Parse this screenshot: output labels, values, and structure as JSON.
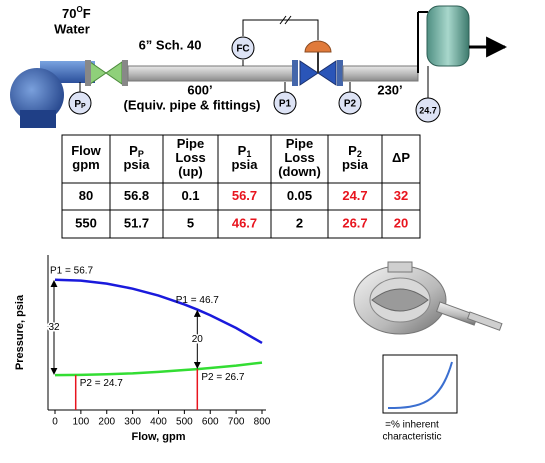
{
  "diagram": {
    "temperature": {
      "value": "70",
      "sup": "O",
      "unit": "F"
    },
    "fluid": "Water",
    "pipe_spec": "6” Sch. 40",
    "controller": "FC",
    "upstream_length": "600’",
    "upstream_note": "(Equiv. pipe & fittings)",
    "gauge_pump": {
      "text": "P",
      "sub": "P"
    },
    "gauge_p1": "P1",
    "gauge_p2": "P2",
    "downstream_length": "230’",
    "gauge_tank": "24.7"
  },
  "table": {
    "header": [
      [
        {
          "text": "Flow"
        },
        {
          "text": "gpm"
        }
      ],
      [
        {
          "text": "P",
          "sub": "P"
        },
        {
          "text": "psia"
        }
      ],
      [
        {
          "text": "Pipe"
        },
        {
          "text": "Loss"
        },
        {
          "text": "(up)"
        }
      ],
      [
        {
          "text": "P",
          "sub": "1"
        },
        {
          "text": "psia"
        }
      ],
      [
        {
          "text": "Pipe"
        },
        {
          "text": "Loss"
        },
        {
          "text": "(down)"
        }
      ],
      [
        {
          "text": "P",
          "sub": "2"
        },
        {
          "text": "psia"
        }
      ],
      [
        {
          "text": "ΔP"
        }
      ]
    ],
    "highlight_columns": [
      3,
      5,
      6
    ],
    "highlight_color": "#e8141e",
    "rows": [
      [
        80,
        56.8,
        0.1,
        56.7,
        0.05,
        24.7,
        32
      ],
      [
        550,
        51.7,
        5,
        46.7,
        2,
        26.7,
        20
      ]
    ]
  },
  "chart_data": {
    "type": "line",
    "x_label": "Flow, gpm",
    "y_label": "Pressure, psia",
    "x": [
      0,
      100,
      200,
      300,
      400,
      500,
      550,
      600,
      700,
      800
    ],
    "series": [
      {
        "name": "P1",
        "color": "#1a1adc",
        "values": [
          56.7,
          56.4,
          55.4,
          53.7,
          51.4,
          48.4,
          46.7,
          44.8,
          40.5,
          35.5
        ]
      },
      {
        "name": "P2",
        "color": "#33dd33",
        "values": [
          24.7,
          24.8,
          25.0,
          25.3,
          25.8,
          26.4,
          26.7,
          27.1,
          27.9,
          28.9
        ]
      }
    ],
    "xlim": [
      0,
      800
    ],
    "xticks": [
      0,
      100,
      200,
      300,
      400,
      500,
      600,
      700,
      800
    ],
    "ylim": [
      13,
      65
    ],
    "markers": [
      {
        "x": 80,
        "p1": 56.7,
        "p2": 24.7,
        "p1_label": "P1 = 56.7",
        "p2_label": "P2 = 24.7",
        "diff_label": "32"
      },
      {
        "x": 550,
        "p1": 46.7,
        "p2": 26.7,
        "p1_label": "P1 = 46.7",
        "p2_label": "P2 = 26.7",
        "diff_label": "20"
      }
    ],
    "marker_color": "#e8141e"
  },
  "inset": {
    "lines": [
      "=% inherent",
      "characteristic"
    ]
  }
}
